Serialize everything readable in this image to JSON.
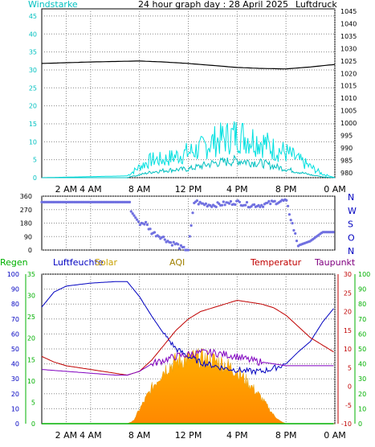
{
  "chart_data": [
    {
      "type": "line",
      "title": "24 hour graph day : 28 April 2025",
      "left_axis_label": "Windstarke",
      "right_axis_label": "Luftdruck",
      "x_tick_labels": [
        "2 AM",
        "4 AM",
        "8 AM",
        "12 PM",
        "4 PM",
        "8 PM",
        "0 AM"
      ],
      "x_tick_hours": [
        2,
        4,
        8,
        12,
        16,
        20,
        24
      ],
      "y_left_ticks": [
        0,
        5,
        10,
        15,
        20,
        25,
        30,
        35,
        40,
        45
      ],
      "y_left_range": [
        0,
        47
      ],
      "y_right_ticks": [
        980,
        985,
        990,
        995,
        1000,
        1005,
        1010,
        1015,
        1020,
        1025,
        1030,
        1035,
        1040,
        1045
      ],
      "y_right_range": [
        978,
        1046
      ],
      "grid": true,
      "series": [
        {
          "key": "pressure",
          "axis": "right",
          "color": "#000000",
          "x": [
            0,
            2,
            4,
            6,
            8,
            10,
            12,
            14,
            16,
            18,
            20,
            22,
            24
          ],
          "y": [
            1024,
            1024.3,
            1024.6,
            1024.8,
            1025,
            1024.6,
            1024,
            1023.2,
            1022.4,
            1022,
            1021.8,
            1022.6,
            1023.6
          ]
        },
        {
          "key": "gust",
          "axis": "left",
          "color": "#00e0e0",
          "x": [
            0,
            7,
            8,
            9,
            10,
            11,
            12,
            13,
            14,
            15,
            16,
            17,
            18,
            19,
            20,
            21,
            22,
            23,
            24
          ],
          "y": [
            0,
            0.5,
            3,
            5,
            5,
            6,
            7,
            8,
            10,
            11,
            12,
            11,
            10,
            8,
            7,
            5,
            3,
            1,
            0
          ]
        },
        {
          "key": "wind_average",
          "axis": "left",
          "color": "#00c0c0",
          "x": [
            0,
            7,
            8,
            9,
            10,
            11,
            12,
            13,
            14,
            15,
            16,
            17,
            18,
            19,
            20,
            21,
            22,
            23,
            24
          ],
          "y": [
            0,
            0,
            1,
            2,
            2.5,
            2.8,
            3,
            4,
            5,
            5.5,
            6,
            5.5,
            5,
            4,
            3,
            2,
            1,
            0.2,
            0
          ]
        }
      ]
    },
    {
      "type": "scatter",
      "y_left_ticks": [
        0,
        90,
        180,
        270,
        360
      ],
      "y_left_range": [
        0,
        360
      ],
      "compass_labels": [
        "N",
        "W",
        "S",
        "O",
        "N"
      ],
      "grid": true,
      "series": [
        {
          "key": "wind_direction",
          "color": "#7070e0",
          "x": [
            0,
            2,
            4,
            6,
            7.2,
            7.3,
            8,
            8.5,
            9,
            10,
            10.5,
            11,
            11.5,
            12,
            12.5,
            13,
            14,
            15,
            16,
            17,
            18,
            19,
            20,
            21,
            22,
            23,
            24
          ],
          "y": [
            320,
            320,
            320,
            320,
            320,
            260,
            180,
            180,
            120,
            80,
            50,
            40,
            10,
            0,
            330,
            310,
            300,
            310,
            320,
            300,
            300,
            320,
            330,
            30,
            60,
            120,
            120
          ]
        }
      ]
    },
    {
      "type": "line",
      "legend": [
        "Regen",
        "Luftfeuchte",
        "Solar",
        "AQI",
        "Temperatur",
        "Taupunkt"
      ],
      "legend_colors": [
        "#00b000",
        "#0000c0",
        "#c8a000",
        "#a08000",
        "#c00000",
        "#800080"
      ],
      "x_tick_labels": [
        "2 AM",
        "4 AM",
        "8 AM",
        "12 PM",
        "4 PM",
        "8 PM",
        "0 AM"
      ],
      "x_tick_hours": [
        2,
        4,
        8,
        12,
        16,
        20,
        24
      ],
      "y_humidity_ticks": [
        0,
        10,
        20,
        30,
        40,
        50,
        60,
        70,
        80,
        90,
        100
      ],
      "y_humidity_range": [
        0,
        100
      ],
      "y_rain_ticks": [
        0,
        5,
        10,
        15,
        20,
        25,
        30,
        35
      ],
      "y_rain_range": [
        0,
        35
      ],
      "y_temp_ticks": [
        -10,
        -5,
        0,
        5,
        10,
        15,
        20,
        25,
        30
      ],
      "y_temp_range": [
        -10,
        30
      ],
      "y_right_ticks": [
        0,
        10,
        20,
        30,
        40,
        50,
        60,
        70,
        80,
        90,
        100
      ],
      "y_right_range": [
        0,
        100
      ],
      "grid": true,
      "series": [
        {
          "key": "humidity",
          "axis": "humidity",
          "color": "#0000c0",
          "x": [
            0,
            1,
            2,
            4,
            6,
            7,
            8,
            9,
            10,
            11,
            12,
            13,
            14,
            15,
            16,
            17,
            18,
            19,
            20,
            21,
            22,
            23,
            24
          ],
          "y": [
            78,
            88,
            92,
            94,
            95,
            95,
            85,
            72,
            60,
            50,
            45,
            41,
            39,
            37,
            36,
            35,
            35,
            37,
            40,
            48,
            55,
            68,
            78
          ]
        },
        {
          "key": "temperature",
          "axis": "temp",
          "color": "#c00000",
          "x": [
            0,
            1,
            2,
            4,
            6,
            7,
            8,
            9,
            10,
            11,
            12,
            13,
            14,
            15,
            16,
            17,
            18,
            19,
            20,
            21,
            22,
            23,
            24
          ],
          "y": [
            8,
            6.5,
            5.5,
            4.5,
            3.5,
            3,
            4,
            7,
            11,
            15,
            18,
            20,
            21,
            22,
            23,
            22.5,
            22,
            21,
            19,
            16,
            13,
            11,
            9
          ]
        },
        {
          "key": "dewpoint",
          "axis": "temp",
          "color": "#8000c0",
          "x": [
            0,
            2,
            4,
            6,
            7,
            8,
            9,
            10,
            11,
            12,
            13,
            14,
            15,
            16,
            17,
            18,
            19,
            20,
            21,
            22,
            23,
            24
          ],
          "y": [
            4.5,
            4,
            3.5,
            3,
            3,
            4,
            6,
            7,
            8,
            8.5,
            9,
            9,
            8.5,
            8,
            7,
            6.5,
            6,
            5.5,
            5.5,
            5.5,
            5.5,
            5.5
          ]
        },
        {
          "key": "solar",
          "axis": "right",
          "color": "#e8a000",
          "x": [
            0,
            7,
            7.5,
            8,
            9,
            10,
            11,
            12,
            13,
            14,
            15,
            16,
            17,
            18,
            19,
            19.5,
            20,
            24
          ],
          "y": [
            0,
            0,
            2,
            10,
            25,
            38,
            44,
            46,
            46,
            45,
            42,
            37,
            28,
            18,
            6,
            2,
            0,
            0
          ]
        },
        {
          "key": "rain",
          "axis": "rain",
          "color": "#00b000",
          "x": [
            0,
            24
          ],
          "y": [
            0,
            0
          ]
        }
      ]
    }
  ]
}
